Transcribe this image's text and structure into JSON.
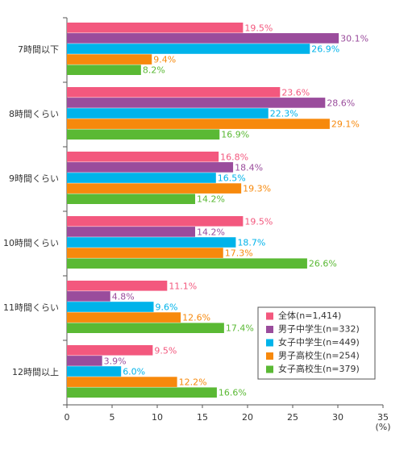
{
  "chart_data": {
    "type": "bar",
    "orientation": "horizontal",
    "categories": [
      "7時間以下",
      "8時間くらい",
      "9時間くらい",
      "10時間くらい",
      "11時間くらい",
      "12時間以上"
    ],
    "series": [
      {
        "name": "全体(n=1,414)",
        "color": "#f3587e",
        "values": [
          19.5,
          23.6,
          16.8,
          19.5,
          11.1,
          9.5
        ],
        "value_labels": [
          "19.5%",
          "23.6%",
          "16.8%",
          "19.5%",
          "11.1%",
          "9.5%"
        ]
      },
      {
        "name": "男子中学生(n=332)",
        "color": "#9a4c9c",
        "values": [
          30.1,
          28.6,
          18.4,
          14.2,
          4.8,
          3.9
        ],
        "value_labels": [
          "30.1%",
          "28.6%",
          "18.4%",
          "14.2%",
          "4.8%",
          "3.9%"
        ]
      },
      {
        "name": "女子中学生(n=449)",
        "color": "#00b3ea",
        "values": [
          26.9,
          22.3,
          16.5,
          18.7,
          9.6,
          6.0
        ],
        "value_labels": [
          "26.9%",
          "22.3%",
          "16.5%",
          "18.7%",
          "9.6%",
          "6.0%"
        ]
      },
      {
        "name": "男子高校生(n=254)",
        "color": "#f7890c",
        "values": [
          9.4,
          29.1,
          19.3,
          17.3,
          12.6,
          12.2
        ],
        "value_labels": [
          "9.4%",
          "29.1%",
          "19.3%",
          "17.3%",
          "12.6%",
          "12.2%"
        ]
      },
      {
        "name": "女子高校生(n=379)",
        "color": "#5ab934",
        "values": [
          8.2,
          16.9,
          14.2,
          26.6,
          17.4,
          16.6
        ],
        "value_labels": [
          "8.2%",
          "16.9%",
          "14.2%",
          "26.6%",
          "17.4%",
          "16.6%"
        ]
      }
    ],
    "xlabel": "(%)",
    "xlim": [
      0,
      35
    ],
    "xticks": [
      0,
      5,
      10,
      15,
      20,
      25,
      30,
      35
    ]
  }
}
